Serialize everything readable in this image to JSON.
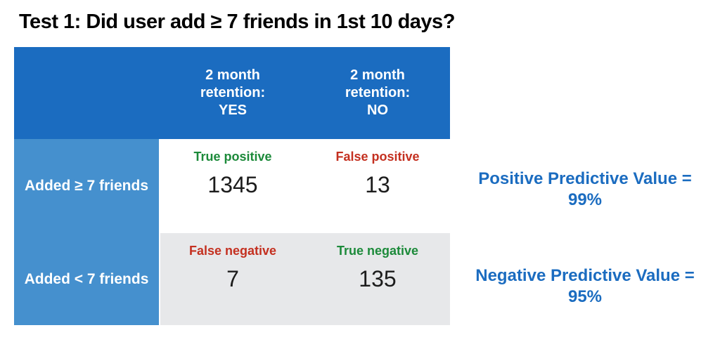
{
  "title": "Test 1: Did user add ≥ 7 friends in 1st 10 days?",
  "colors": {
    "header_blue": "#1b6cc0",
    "row_label_blue": "#4590ce",
    "cell_gray": "#e7e8ea",
    "positive_green": "#1c8a3a",
    "negative_red": "#c43020",
    "annotation_blue": "#1b6cc0",
    "number_black": "#1c1c1c",
    "title_black": "#000000"
  },
  "table": {
    "col_headers": [
      "2 month\nretention:\nYES",
      "2 month\nretention:\nNO"
    ],
    "row_labels": [
      "Added ≥ 7 friends",
      "Added < 7 friends"
    ],
    "cells": [
      {
        "label": "True positive",
        "value": "1345"
      },
      {
        "label": "False positive",
        "value": "13"
      },
      {
        "label": "False negative",
        "value": "7"
      },
      {
        "label": "True negative",
        "value": "135"
      }
    ]
  },
  "annotations": [
    {
      "line1": "Positive Predictive Value =",
      "line2": "99%"
    },
    {
      "line1": "Negative Predictive Value =",
      "line2": "95%"
    }
  ],
  "chart_data": {
    "type": "table",
    "title": "Test 1: Did user add ≥ 7 friends in 1st 10 days?",
    "columns": [
      "2 month retention: YES",
      "2 month retention: NO"
    ],
    "rows": [
      "Added ≥ 7 friends",
      "Added < 7 friends"
    ],
    "values": [
      [
        1345,
        13
      ],
      [
        7,
        135
      ]
    ],
    "cell_labels": [
      [
        "True positive",
        "False positive"
      ],
      [
        "False negative",
        "True negative"
      ]
    ],
    "derived_metrics": [
      {
        "name": "Positive Predictive Value",
        "value": "99%"
      },
      {
        "name": "Negative Predictive Value",
        "value": "95%"
      }
    ]
  }
}
